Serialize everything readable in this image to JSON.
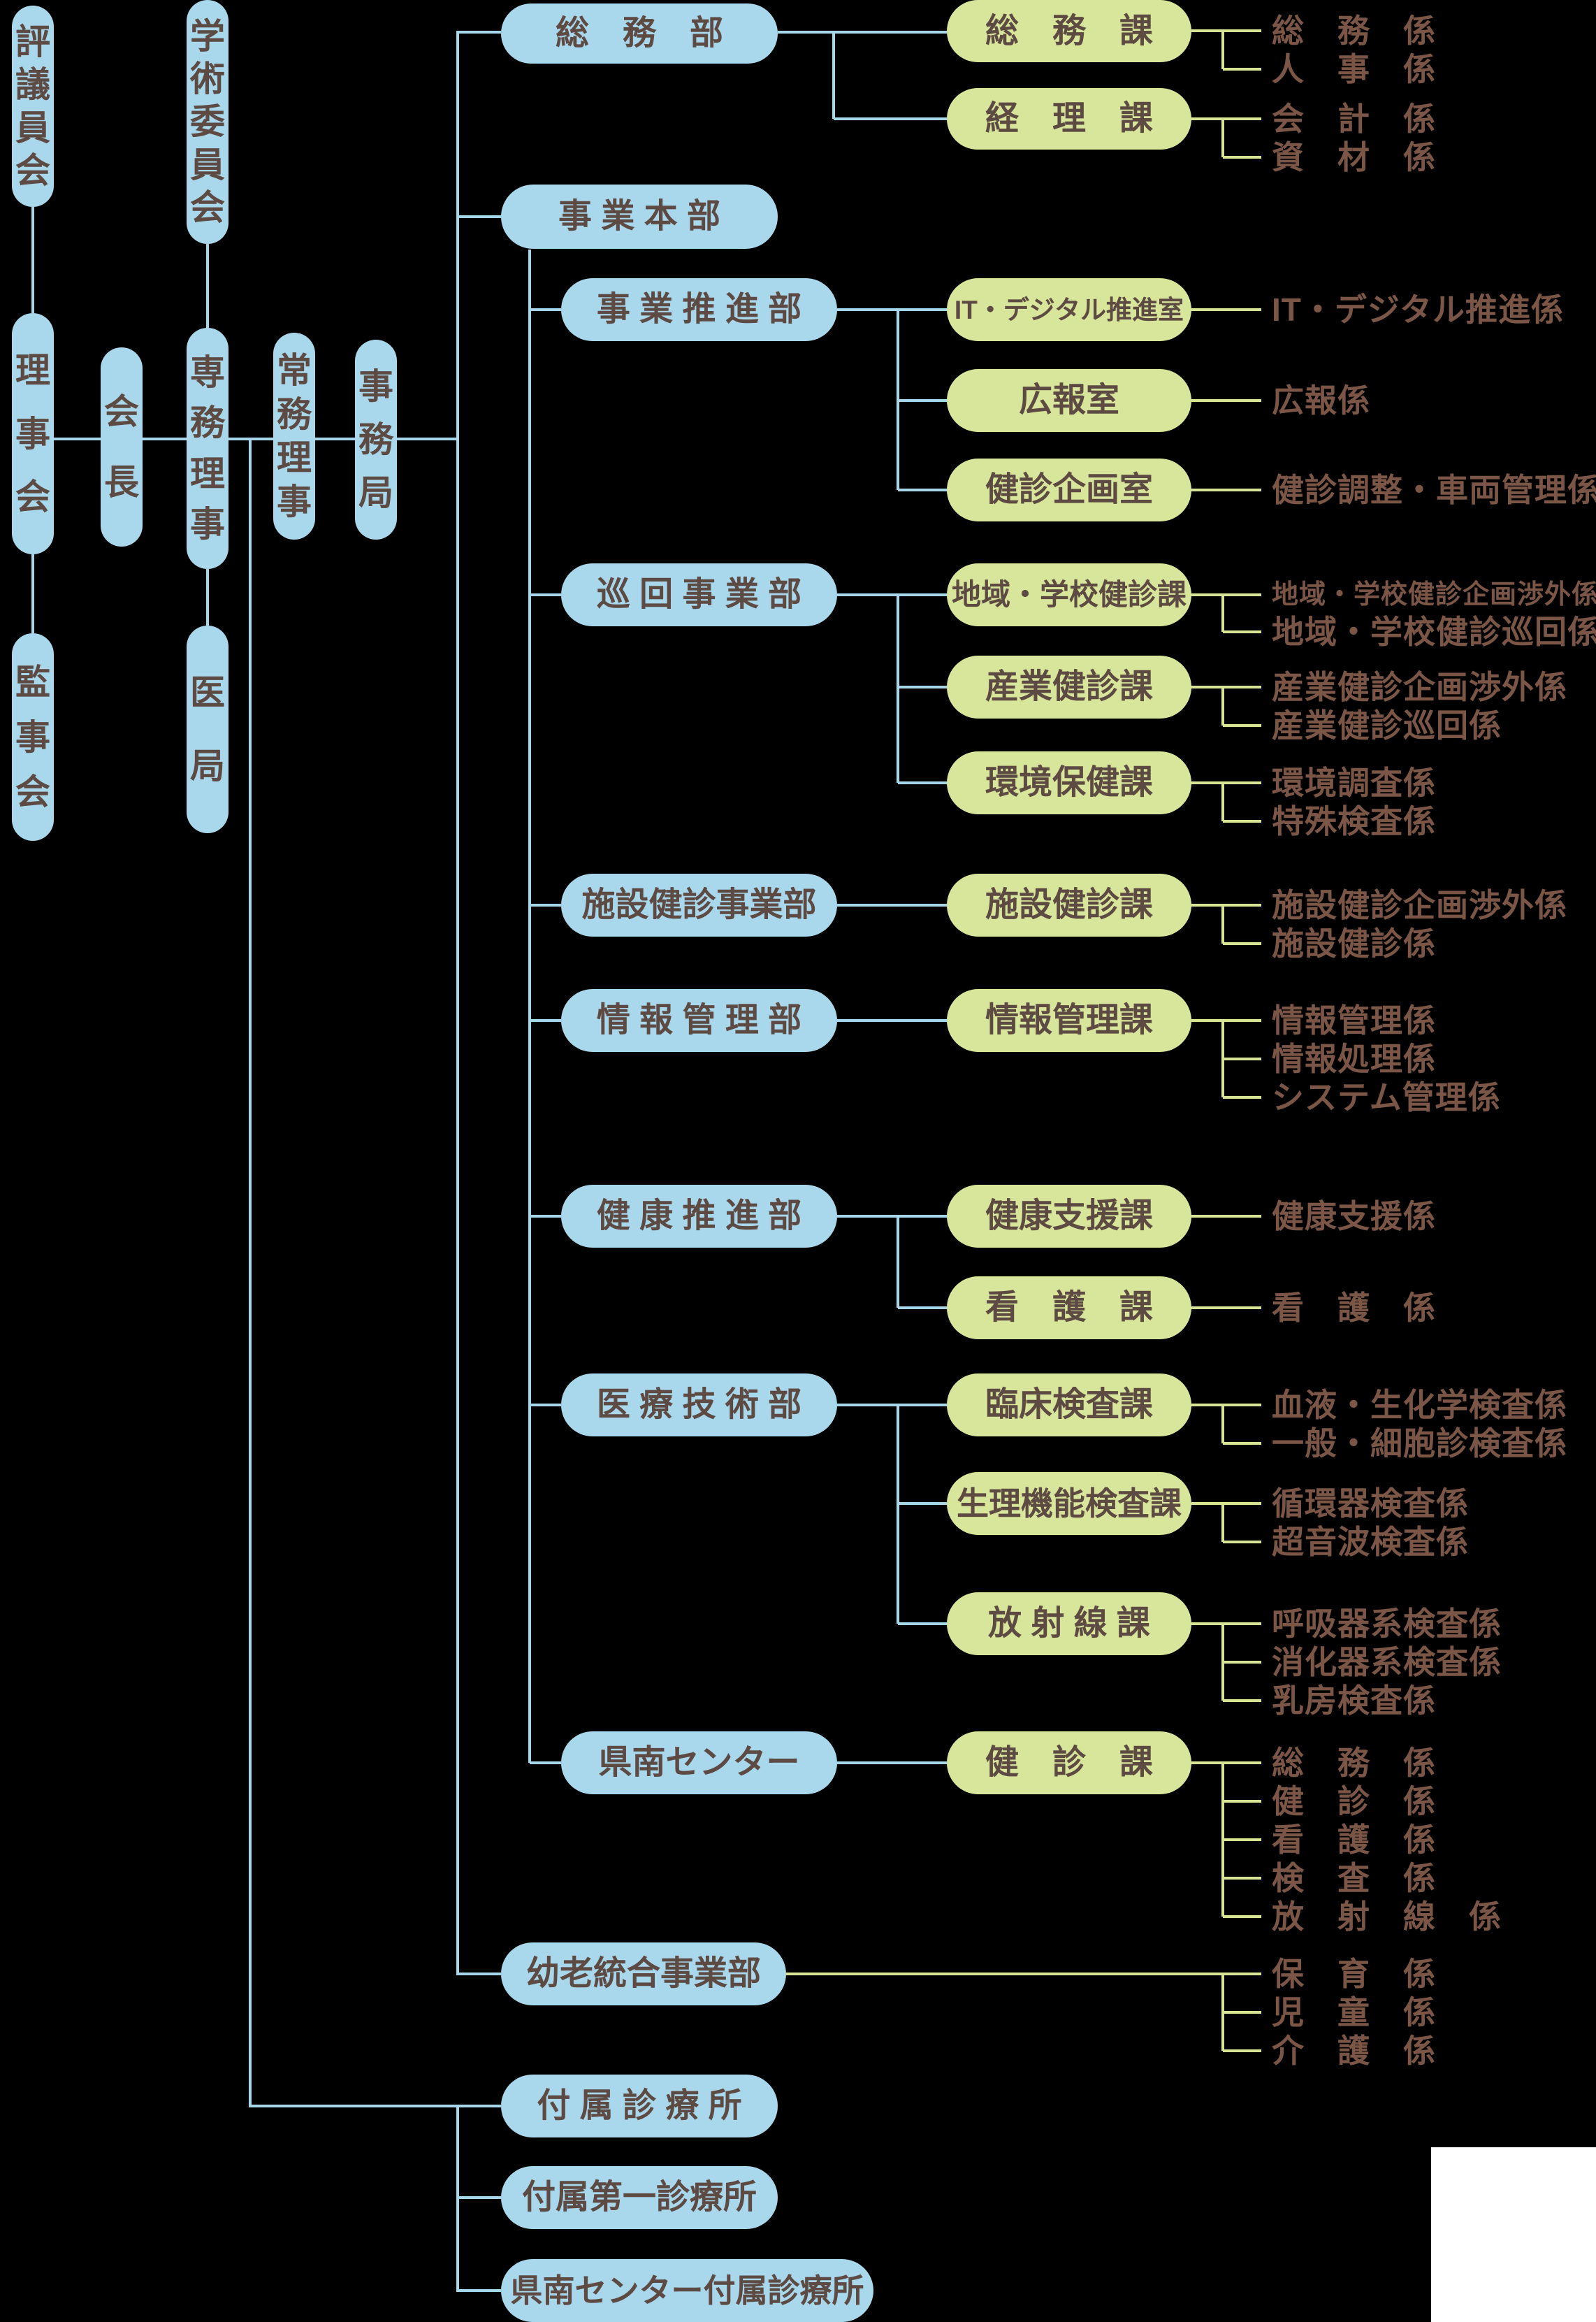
{
  "colors": {
    "background": "#000000",
    "pill_blue": "#a9d7ec",
    "pill_green": "#d8e69b",
    "line_blue": "#a5d6e9",
    "line_green": "#d6e494",
    "pill_text": "#5d4a42",
    "leaf_text": "#7b5646",
    "white_patch": "#ffffff"
  },
  "nodes": {
    "hyogiinkai": {
      "label": "評議員会"
    },
    "gakujutsu_iinkai": {
      "label": "学術委員会"
    },
    "rijikai": {
      "label": "理事会"
    },
    "kaicho": {
      "label": "会長"
    },
    "senmu_riji": {
      "label": "専務理事"
    },
    "jomu_riji": {
      "label": "常務理事"
    },
    "jimukyoku": {
      "label": "事務局"
    },
    "kanjikai": {
      "label": "監事会"
    },
    "ikyoku": {
      "label": "医局"
    },
    "soumubu": {
      "label": "総　務　部"
    },
    "jigyohonbu": {
      "label": "事 業 本 部"
    },
    "jigyosuishinbu": {
      "label": "事 業 推 進 部"
    },
    "junkaijigyobu": {
      "label": "巡 回 事 業 部"
    },
    "shisetsukenshin_jigyobu": {
      "label": "施設健診事業部"
    },
    "johokanribu": {
      "label": "情 報 管 理 部"
    },
    "kenkosuishinbu": {
      "label": "健 康 推 進 部"
    },
    "iryogijutsubu": {
      "label": "医 療 技 術 部"
    },
    "kennan_center": {
      "label": "県南センター"
    },
    "yorotogo_jigyobu": {
      "label": "幼老統合事業部"
    },
    "fuzoku_shinryojo": {
      "label": "付 属 診 療 所"
    },
    "fuzoku_daiichi_shinryojo": {
      "label": "付属第一診療所"
    },
    "kennan_center_fuzoku_shinryojo": {
      "label": "県南センター付属診療所"
    },
    "soumuka": {
      "label": "総　務　課"
    },
    "keirika": {
      "label": "経　理　課"
    },
    "it_digital_suishinshitsu": {
      "label": "IT・デジタル推進室"
    },
    "kohoshitsu": {
      "label": "広報室"
    },
    "kenshin_kikakushitsu": {
      "label": "健診企画室"
    },
    "chiiki_gakko_kenshinka": {
      "label": "地域・学校健診課"
    },
    "sangyo_kenshinka": {
      "label": "産業健診課"
    },
    "kankyo_hokenka": {
      "label": "環境保健課"
    },
    "shisetsu_kenshinka": {
      "label": "施設健診課"
    },
    "johokanrika": {
      "label": "情報管理課"
    },
    "kenko_shienka": {
      "label": "健康支援課"
    },
    "kangoka": {
      "label": "看　護　課"
    },
    "rinsho_kensaka": {
      "label": "臨床検査課"
    },
    "seirikino_kensaka": {
      "label": "生理機能検査課"
    },
    "hoshasenka": {
      "label": "放 射 線 課"
    },
    "kenshinka": {
      "label": "健　診　課"
    }
  },
  "leaves": {
    "soumu_kakari": {
      "label": "総　務　係"
    },
    "jinji_kakari": {
      "label": "人　事　係"
    },
    "kaikei_kakari": {
      "label": "会　計　係"
    },
    "shizai_kakari": {
      "label": "資　材　係"
    },
    "it_digital_suishin_kakari": {
      "label": "IT・デジタル推進係"
    },
    "koho_kakari": {
      "label": "広報係"
    },
    "kenshin_chosei_sharyokanri_kakari": {
      "label": "健診調整・車両管理係"
    },
    "chiiki_gakko_kenshin_kikaku_shogai_kakari": {
      "label": "地域・学校健診企画渉外係"
    },
    "chiiki_gakko_kenshin_junkai_kakari": {
      "label": "地域・学校健診巡回係"
    },
    "sangyo_kenshin_kikaku_shogai_kakari": {
      "label": "産業健診企画渉外係"
    },
    "sangyo_kenshin_junkai_kakari": {
      "label": "産業健診巡回係"
    },
    "kankyo_chosa_kakari": {
      "label": "環境調査係"
    },
    "tokushu_kensa_kakari": {
      "label": "特殊検査係"
    },
    "shisetsu_kenshin_kikaku_shogai_kakari": {
      "label": "施設健診企画渉外係"
    },
    "shisetsu_kenshin_kakari": {
      "label": "施設健診係"
    },
    "johokanri_kakari": {
      "label": "情報管理係"
    },
    "johoshori_kakari": {
      "label": "情報処理係"
    },
    "system_kanri_kakari": {
      "label": "システム管理係"
    },
    "kenko_shien_kakari": {
      "label": "健康支援係"
    },
    "kango_kakari": {
      "label": "看　護　係"
    },
    "ketsueki_seikagaku_kensa_kakari": {
      "label": "血液・生化学検査係"
    },
    "ippan_saiboshin_kensa_kakari": {
      "label": "一般・細胞診検査係"
    },
    "junkanki_kensa_kakari": {
      "label": "循環器検査係"
    },
    "choonpa_kensa_kakari": {
      "label": "超音波検査係"
    },
    "kokyukikei_kensa_kakari": {
      "label": "呼吸器系検査係"
    },
    "shokakikei_kensa_kakari": {
      "label": "消化器系検査係"
    },
    "nyubo_kensa_kakari": {
      "label": "乳房検査係"
    },
    "kennan_soumu_kakari": {
      "label": "総　務　係"
    },
    "kennan_kenshin_kakari": {
      "label": "健　診　係"
    },
    "kennan_kango_kakari": {
      "label": "看　護　係"
    },
    "kennan_kensa_kakari": {
      "label": "検　査　係"
    },
    "kennan_hoshasen_kakari": {
      "label": "放　射　線　係"
    },
    "hoiku_kakari": {
      "label": "保　育　係"
    },
    "jido_kakari": {
      "label": "児　童　係"
    },
    "kaigo_kakari": {
      "label": "介　護　係"
    }
  }
}
